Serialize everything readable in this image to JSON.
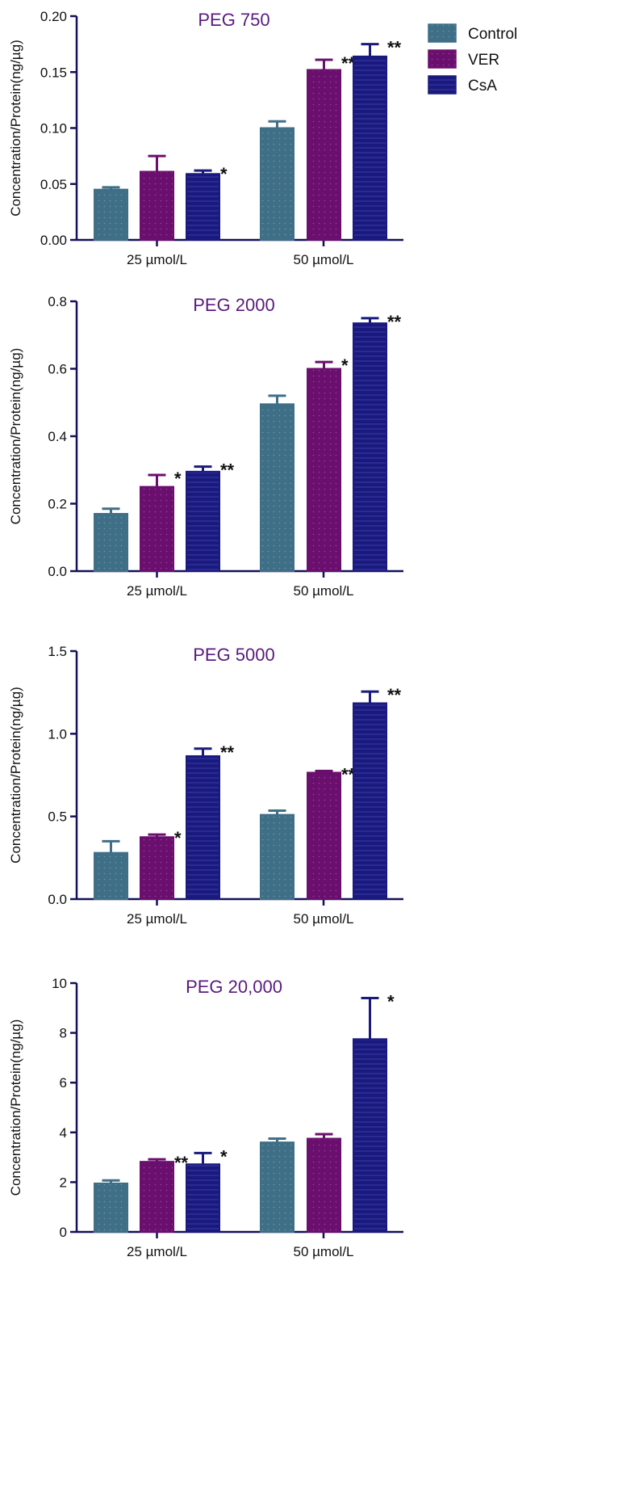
{
  "chart_data": [
    {
      "type": "bar",
      "title": "PEG 750",
      "xlabel": "",
      "ylabel": "Concentration/Protein(ng/µg)",
      "ylim": [
        0,
        0.2
      ],
      "yticks": [
        "0.00",
        "0.05",
        "0.10",
        "0.15",
        "0.20"
      ],
      "ytick_values": [
        0,
        0.05,
        0.1,
        0.15,
        0.2
      ],
      "categories": [
        "25 µmol/L",
        "50 µmol/L"
      ],
      "series": [
        {
          "name": "Control",
          "values": [
            0.045,
            0.1
          ],
          "errors": [
            0.002,
            0.006
          ],
          "sig": [
            "",
            ""
          ]
        },
        {
          "name": "VER",
          "values": [
            0.061,
            0.152
          ],
          "errors": [
            0.014,
            0.009
          ],
          "sig": [
            "",
            "**"
          ]
        },
        {
          "name": "CsA",
          "values": [
            0.059,
            0.164
          ],
          "errors": [
            0.003,
            0.011
          ],
          "sig": [
            "*",
            "**"
          ]
        }
      ]
    },
    {
      "type": "bar",
      "title": "PEG 2000",
      "xlabel": "",
      "ylabel": "Concentration/Protein(ng/µg)",
      "ylim": [
        0,
        0.8
      ],
      "yticks": [
        "0.0",
        "0.2",
        "0.4",
        "0.6",
        "0.8"
      ],
      "ytick_values": [
        0,
        0.2,
        0.4,
        0.6,
        0.8
      ],
      "categories": [
        "25 µmol/L",
        "50 µmol/L"
      ],
      "series": [
        {
          "name": "Control",
          "values": [
            0.17,
            0.495
          ],
          "errors": [
            0.015,
            0.025
          ],
          "sig": [
            "",
            ""
          ]
        },
        {
          "name": "VER",
          "values": [
            0.25,
            0.6
          ],
          "errors": [
            0.035,
            0.02
          ],
          "sig": [
            "*",
            "*"
          ]
        },
        {
          "name": "CsA",
          "values": [
            0.295,
            0.735
          ],
          "errors": [
            0.015,
            0.015
          ],
          "sig": [
            "**",
            "**"
          ]
        }
      ]
    },
    {
      "type": "bar",
      "title": "PEG 5000",
      "xlabel": "",
      "ylabel": "Concentration/Protein(ng/µg)",
      "ylim": [
        0,
        1.5
      ],
      "yticks": [
        "0.0",
        "0.5",
        "1.0",
        "1.5"
      ],
      "ytick_values": [
        0,
        0.5,
        1.0,
        1.5
      ],
      "categories": [
        "25 µmol/L",
        "50 µmol/L"
      ],
      "series": [
        {
          "name": "Control",
          "values": [
            0.28,
            0.51
          ],
          "errors": [
            0.07,
            0.025
          ],
          "sig": [
            "",
            ""
          ]
        },
        {
          "name": "VER",
          "values": [
            0.375,
            0.765
          ],
          "errors": [
            0.015,
            0.01
          ],
          "sig": [
            "*",
            "**"
          ]
        },
        {
          "name": "CsA",
          "values": [
            0.865,
            1.185
          ],
          "errors": [
            0.045,
            0.07
          ],
          "sig": [
            "**",
            "**"
          ]
        }
      ]
    },
    {
      "type": "bar",
      "title": "PEG 20,000",
      "xlabel": "",
      "ylabel": "Concentration/Protein(ng/µg)",
      "ylim": [
        0,
        10
      ],
      "yticks": [
        "0",
        "2",
        "4",
        "6",
        "8",
        "10"
      ],
      "ytick_values": [
        0,
        2,
        4,
        6,
        8,
        10
      ],
      "categories": [
        "25 µmol/L",
        "50 µmol/L"
      ],
      "series": [
        {
          "name": "Control",
          "values": [
            1.95,
            3.6
          ],
          "errors": [
            0.12,
            0.15
          ],
          "sig": [
            "",
            ""
          ]
        },
        {
          "name": "VER",
          "values": [
            2.82,
            3.75
          ],
          "errors": [
            0.1,
            0.18
          ],
          "sig": [
            "**",
            ""
          ]
        },
        {
          "name": "CsA",
          "values": [
            2.72,
            7.75
          ],
          "errors": [
            0.45,
            1.65
          ],
          "sig": [
            "*",
            "*"
          ]
        }
      ]
    }
  ],
  "legend": {
    "placement": "top-right",
    "entries": [
      "Control",
      "VER",
      "CsA"
    ]
  },
  "colors": {
    "Control": "#3f6f86",
    "VER": "#6a0f6e",
    "CsA": "#1a1a7e",
    "axis": "#14105a",
    "title": "#5a1a80"
  }
}
